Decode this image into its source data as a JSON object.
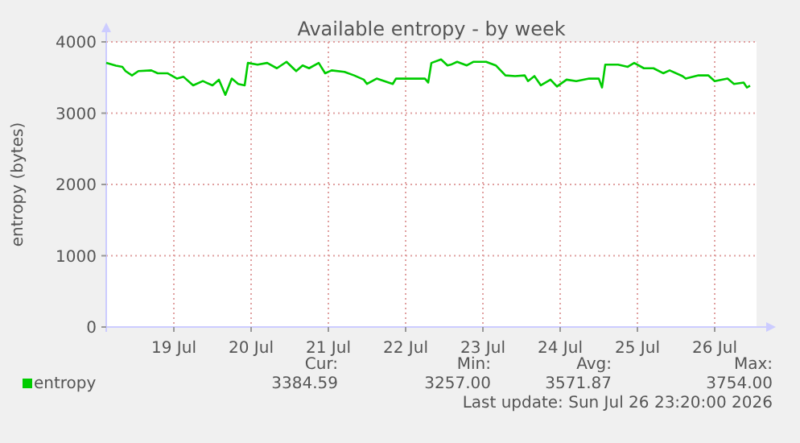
{
  "chart_data": {
    "type": "line",
    "title": "Available entropy - by week",
    "ylabel": "entropy (bytes)",
    "x": [
      "2026-07-18T15:00",
      "2026-07-18T18:00",
      "2026-07-18T20:00",
      "2026-07-18T21:00",
      "2026-07-18T23:00",
      "2026-07-19T01:00",
      "2026-07-19T05:00",
      "2026-07-19T07:00",
      "2026-07-19T10:00",
      "2026-07-19T13:00",
      "2026-07-19T15:00",
      "2026-07-19T18:00",
      "2026-07-19T21:00",
      "2026-07-20T00:00",
      "2026-07-20T02:00",
      "2026-07-20T04:00",
      "2026-07-20T06:00",
      "2026-07-20T08:00",
      "2026-07-20T10:00",
      "2026-07-20T11:00",
      "2026-07-20T14:00",
      "2026-07-20T17:00",
      "2026-07-20T20:00",
      "2026-07-20T23:00",
      "2026-07-21T02:00",
      "2026-07-21T04:00",
      "2026-07-21T06:00",
      "2026-07-21T09:00",
      "2026-07-21T11:00",
      "2026-07-21T13:00",
      "2026-07-21T17:00",
      "2026-07-21T20:00",
      "2026-07-21T23:00",
      "2026-07-22T00:00",
      "2026-07-22T03:00",
      "2026-07-22T08:00",
      "2026-07-22T09:00",
      "2026-07-22T18:00",
      "2026-07-22T19:00",
      "2026-07-22T20:00",
      "2026-07-22T23:00",
      "2026-07-23T01:00",
      "2026-07-23T02:00",
      "2026-07-23T04:00",
      "2026-07-23T07:00",
      "2026-07-23T09:00",
      "2026-07-23T13:00",
      "2026-07-23T16:00",
      "2026-07-23T19:00",
      "2026-07-23T22:00",
      "2026-07-24T01:00",
      "2026-07-24T02:00",
      "2026-07-24T04:00",
      "2026-07-24T06:00",
      "2026-07-24T09:00",
      "2026-07-24T11:00",
      "2026-07-24T14:00",
      "2026-07-24T17:00",
      "2026-07-24T21:00",
      "2026-07-25T00:00",
      "2026-07-25T01:00",
      "2026-07-25T02:00",
      "2026-07-25T06:00",
      "2026-07-25T09:00",
      "2026-07-25T11:00",
      "2026-07-25T14:00",
      "2026-07-25T17:00",
      "2026-07-25T20:00",
      "2026-07-25T22:00",
      "2026-07-26T02:00",
      "2026-07-26T03:00",
      "2026-07-26T07:00",
      "2026-07-26T10:00",
      "2026-07-26T12:00",
      "2026-07-26T16:00",
      "2026-07-26T18:00",
      "2026-07-26T21:00",
      "2026-07-26T22:00",
      "2026-07-26T23:00"
    ],
    "series": [
      {
        "name": "entropy",
        "color": "#00cc00",
        "values": [
          3705,
          3666,
          3650,
          3590,
          3530,
          3590,
          3600,
          3560,
          3560,
          3485,
          3510,
          3390,
          3450,
          3390,
          3470,
          3257,
          3485,
          3410,
          3390,
          3705,
          3680,
          3705,
          3630,
          3720,
          3590,
          3670,
          3630,
          3705,
          3560,
          3600,
          3580,
          3530,
          3470,
          3410,
          3485,
          3410,
          3485,
          3485,
          3430,
          3705,
          3754,
          3670,
          3680,
          3720,
          3670,
          3720,
          3720,
          3670,
          3530,
          3520,
          3530,
          3450,
          3520,
          3390,
          3470,
          3375,
          3470,
          3450,
          3485,
          3485,
          3360,
          3680,
          3680,
          3650,
          3705,
          3630,
          3630,
          3560,
          3600,
          3520,
          3485,
          3530,
          3530,
          3450,
          3485,
          3410,
          3430,
          3360,
          3385
        ]
      }
    ],
    "xlim": [
      "2026-07-18T15:00",
      "2026-07-27T01:00"
    ],
    "xticks": [
      {
        "value": "2026-07-19T12:00",
        "label": "19 Jul"
      },
      {
        "value": "2026-07-20T12:00",
        "label": "20 Jul"
      },
      {
        "value": "2026-07-21T12:00",
        "label": "21 Jul"
      },
      {
        "value": "2026-07-22T12:00",
        "label": "22 Jul"
      },
      {
        "value": "2026-07-23T12:00",
        "label": "23 Jul"
      },
      {
        "value": "2026-07-24T12:00",
        "label": "24 Jul"
      },
      {
        "value": "2026-07-25T12:00",
        "label": "25 Jul"
      },
      {
        "value": "2026-07-26T12:00",
        "label": "26 Jul"
      }
    ],
    "ylim": [
      0,
      4000
    ],
    "yticks": [
      0,
      1000,
      2000,
      3000,
      4000
    ],
    "grid": true,
    "legend": "bottom left",
    "annotations": [
      "Cur:",
      "Min:",
      "Avg:",
      "Max:",
      "3384.59",
      "3257.00",
      "3571.87",
      "3754.00",
      "Last update: Sun Jul 26 23:20:00 2026"
    ]
  }
}
